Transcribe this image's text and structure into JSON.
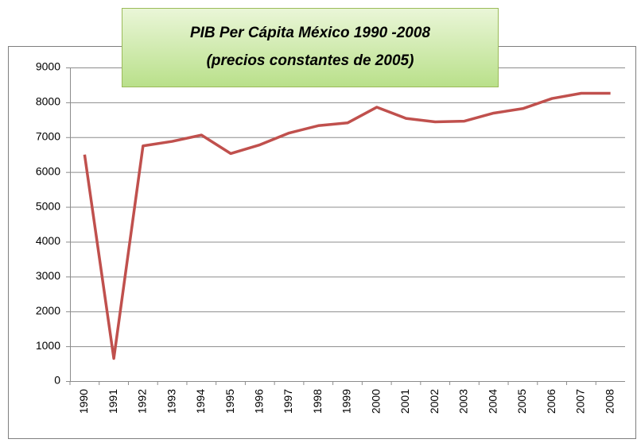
{
  "chart_data": {
    "type": "line",
    "title": [
      "PIB  Per Cápita  México  1990 -2008",
      "(precios  constantes   de  2005)"
    ],
    "categories": [
      "1990",
      "1991",
      "1992",
      "1993",
      "1994",
      "1995",
      "1996",
      "1997",
      "1998",
      "1999",
      "2000",
      "2001",
      "2002",
      "2003",
      "2004",
      "2005",
      "2006",
      "2007",
      "2008"
    ],
    "values": [
      6500,
      650,
      6750,
      6880,
      7060,
      6530,
      6780,
      7120,
      7330,
      7410,
      7860,
      7540,
      7440,
      7460,
      7690,
      7820,
      8110,
      8260,
      8260
    ],
    "color": "#c0504d",
    "ylim": [
      0,
      9000
    ],
    "yticks": [
      0,
      1000,
      2000,
      3000,
      4000,
      5000,
      6000,
      7000,
      8000,
      9000
    ],
    "grid": true
  }
}
